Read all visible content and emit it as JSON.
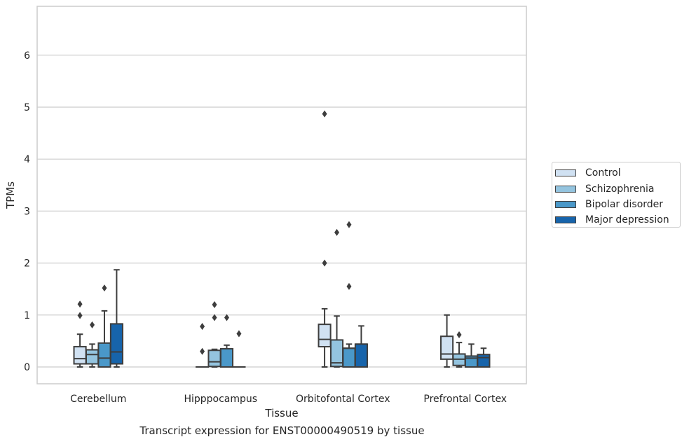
{
  "chart_data": {
    "type": "box",
    "caption": "Transcript expression for ENST00000490519 by tissue",
    "xlabel": "Tissue",
    "ylabel": "TPMs",
    "ylim": [
      -0.32,
      6.95
    ],
    "yticks": [
      0,
      1,
      2,
      3,
      4,
      5,
      6
    ],
    "grid": true,
    "legend_position": "right",
    "categories": [
      "Cerebellum",
      "Hipppocampus",
      "Orbitofontal Cortex",
      "Prefrontal Cortex"
    ],
    "series": [
      {
        "name": "Control",
        "color": "#d0e1f2",
        "boxes": [
          {
            "q1": 0.06,
            "median": 0.16,
            "q3": 0.39,
            "whisker_low": 0,
            "whisker_high": 0.63,
            "outliers": [
              0.99,
              1.21
            ]
          },
          {
            "q1": 0,
            "median": 0,
            "q3": 0,
            "whisker_low": 0,
            "whisker_high": 0,
            "outliers": [
              0.3,
              0.78
            ]
          },
          {
            "q1": 0.39,
            "median": 0.53,
            "q3": 0.82,
            "whisker_low": 0,
            "whisker_high": 1.12,
            "outliers": [
              2.0,
              4.87
            ]
          },
          {
            "q1": 0.15,
            "median": 0.25,
            "q3": 0.59,
            "whisker_low": 0,
            "whisker_high": 1.0,
            "outliers": []
          }
        ]
      },
      {
        "name": "Schizophrenia",
        "color": "#94c4df",
        "boxes": [
          {
            "q1": 0.06,
            "median": 0.24,
            "q3": 0.33,
            "whisker_low": 0,
            "whisker_high": 0.44,
            "outliers": [
              0.81
            ]
          },
          {
            "q1": 0.01,
            "median": 0.1,
            "q3": 0.32,
            "whisker_low": 0,
            "whisker_high": 0.34,
            "outliers": [
              0.95,
              1.2
            ]
          },
          {
            "q1": 0.01,
            "median": 0.08,
            "q3": 0.52,
            "whisker_low": 0,
            "whisker_high": 0.98,
            "outliers": [
              2.59
            ]
          },
          {
            "q1": 0.03,
            "median": 0.15,
            "q3": 0.25,
            "whisker_low": 0,
            "whisker_high": 0.47,
            "outliers": [
              0.62
            ]
          }
        ]
      },
      {
        "name": "Bipolar disorder",
        "color": "#4a98c9",
        "boxes": [
          {
            "q1": 0.0,
            "median": 0.17,
            "q3": 0.46,
            "whisker_low": 0,
            "whisker_high": 1.08,
            "outliers": [
              1.52
            ]
          },
          {
            "q1": 0.0,
            "median": 0.0,
            "q3": 0.35,
            "whisker_low": 0,
            "whisker_high": 0.42,
            "outliers": [
              0.95
            ]
          },
          {
            "q1": 0.0,
            "median": 0.36,
            "q3": 0.36,
            "whisker_low": 0,
            "whisker_high": 0.44,
            "outliers": [
              1.55,
              2.74
            ]
          },
          {
            "q1": 0.0,
            "median": 0.17,
            "q3": 0.21,
            "whisker_low": 0,
            "whisker_high": 0.44,
            "outliers": []
          }
        ]
      },
      {
        "name": "Major depression",
        "color": "#1764ab",
        "boxes": [
          {
            "q1": 0.06,
            "median": 0.29,
            "q3": 0.83,
            "whisker_low": 0,
            "whisker_high": 1.87,
            "outliers": []
          },
          {
            "q1": 0,
            "median": 0,
            "q3": 0,
            "whisker_low": 0,
            "whisker_high": 0,
            "outliers": [
              0.64
            ]
          },
          {
            "q1": 0.0,
            "median": 0.44,
            "q3": 0.44,
            "whisker_low": 0,
            "whisker_high": 0.79,
            "outliers": []
          },
          {
            "q1": 0.0,
            "median": 0.18,
            "q3": 0.24,
            "whisker_low": 0,
            "whisker_high": 0.36,
            "outliers": []
          }
        ]
      }
    ]
  }
}
